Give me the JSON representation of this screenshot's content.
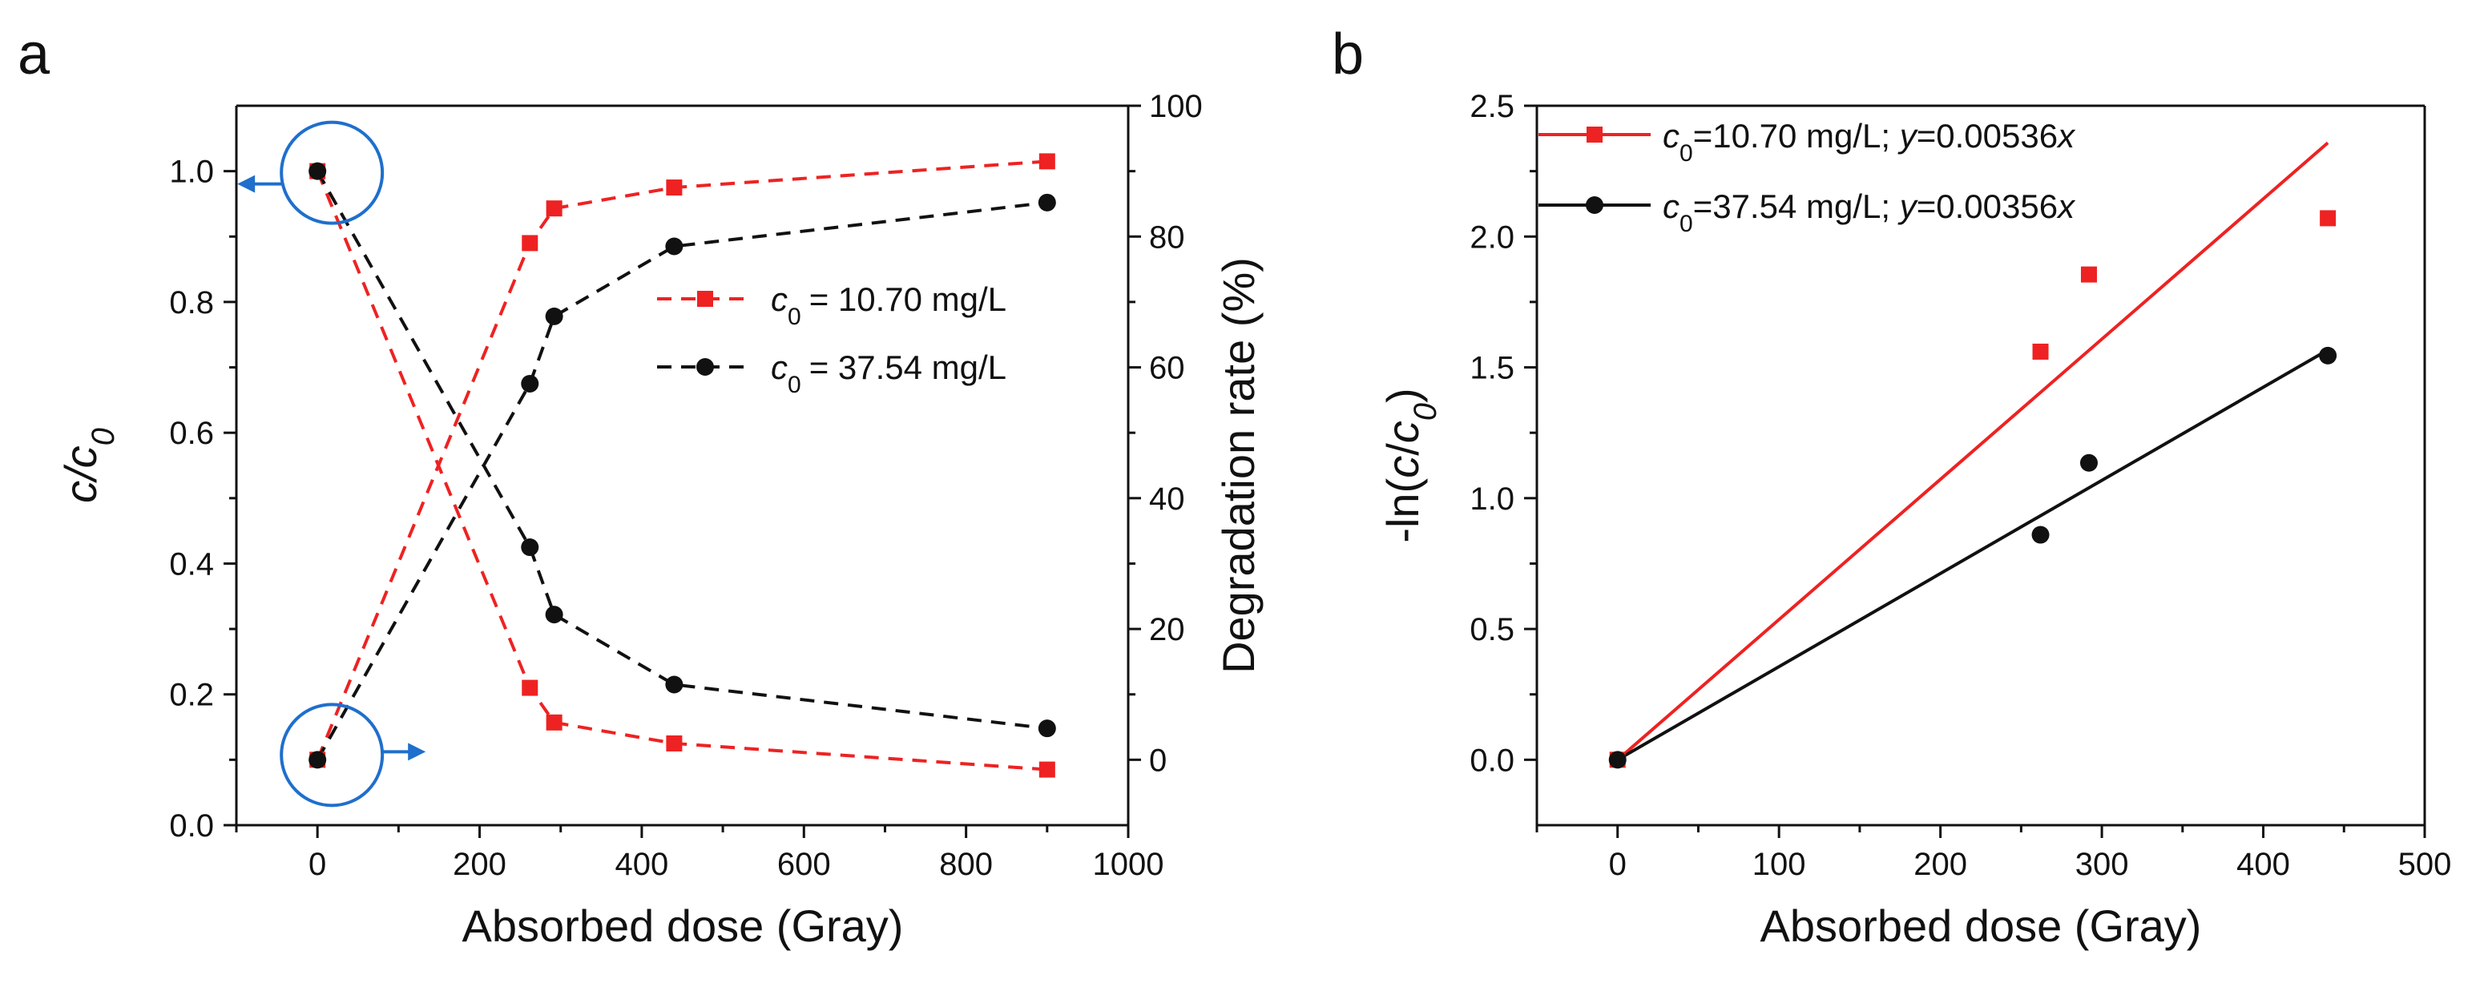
{
  "chart_data": [
    {
      "panel_label": "a",
      "type": "line",
      "xlabel": "Absorbed dose (Gray)",
      "ylabel": "c/c0",
      "ylabel_right": "Degradation rate (%)",
      "xlim": [
        -100,
        1000
      ],
      "ylim": [
        0,
        1.1
      ],
      "ylim_right": [
        -10,
        100
      ],
      "x_ticks": [
        0,
        200,
        400,
        600,
        800,
        1000
      ],
      "y_ticks": [
        0.0,
        0.2,
        0.4,
        0.6,
        0.8,
        1.0
      ],
      "y_ticks_right": [
        0,
        20,
        40,
        60,
        80,
        100
      ],
      "tick_labels_x": [
        "0",
        "200",
        "400",
        "600",
        "800",
        "1000"
      ],
      "tick_labels_y": [
        "0.0",
        "0.2",
        "0.4",
        "0.6",
        "0.8",
        "1.0"
      ],
      "tick_labels_y_right": [
        "0",
        "20",
        "40",
        "60",
        "80",
        "100"
      ],
      "legend": "inside right",
      "series": [
        {
          "name": "c0 = 10.70 mg/L",
          "legend_label": "= 10.70 mg/L",
          "color": "#ee2222",
          "marker": "square",
          "axis": "left",
          "x": [
            0,
            262,
            292,
            440,
            900
          ],
          "values": [
            1.0,
            0.21,
            0.157,
            0.125,
            0.085
          ]
        },
        {
          "name": "c0 = 37.54 mg/L",
          "legend_label": "= 37.54 mg/L",
          "color": "#111111",
          "marker": "circle",
          "axis": "left",
          "x": [
            0,
            262,
            292,
            440,
            900
          ],
          "values": [
            1.0,
            0.425,
            0.322,
            0.215,
            0.148
          ]
        },
        {
          "name": "c0 = 10.70 mg/L (degradation)",
          "color": "#ee2222",
          "marker": "square",
          "axis": "right",
          "x": [
            0,
            262,
            292,
            440,
            900
          ],
          "values": [
            0,
            79,
            84.3,
            87.5,
            91.5
          ]
        },
        {
          "name": "c0 = 37.54 mg/L (degradation)",
          "color": "#111111",
          "marker": "circle",
          "axis": "right",
          "x": [
            0,
            262,
            292,
            440,
            900
          ],
          "values": [
            0,
            57.5,
            67.8,
            78.5,
            85.2
          ]
        }
      ],
      "annotation_color": "#1f6fcc"
    },
    {
      "panel_label": "b",
      "type": "scatter",
      "xlabel": "Absorbed dose (Gray)",
      "ylabel": "-ln(c/c0)",
      "xlim": [
        -50,
        500
      ],
      "ylim": [
        -0.25,
        2.5
      ],
      "x_ticks": [
        0,
        100,
        200,
        300,
        400,
        500
      ],
      "y_ticks": [
        0.0,
        0.5,
        1.0,
        1.5,
        2.0,
        2.5
      ],
      "tick_labels_x": [
        "0",
        "100",
        "200",
        "300",
        "400",
        "500"
      ],
      "tick_labels_y": [
        "0.0",
        "0.5",
        "1.0",
        "1.5",
        "2.0",
        "2.5"
      ],
      "legend": "top-left",
      "series": [
        {
          "name": "c0=10.70 mg/L; y=0.00536x",
          "legend_label_a": "=10.70 mg/L; ",
          "legend_label_b": "=0.00536",
          "color": "#ee2222",
          "marker": "square",
          "x": [
            0,
            262,
            292,
            440
          ],
          "values": [
            0.0,
            1.56,
            1.855,
            2.07
          ],
          "slope": 0.00536
        },
        {
          "name": "c0=37.54 mg/L; y=0.00356x",
          "legend_label_a": "=37.54 mg/L; ",
          "legend_label_b": "=0.00356",
          "color": "#111111",
          "marker": "circle",
          "x": [
            0,
            262,
            292,
            440
          ],
          "values": [
            0.0,
            0.86,
            1.135,
            1.545
          ],
          "slope": 0.00356
        }
      ]
    }
  ]
}
